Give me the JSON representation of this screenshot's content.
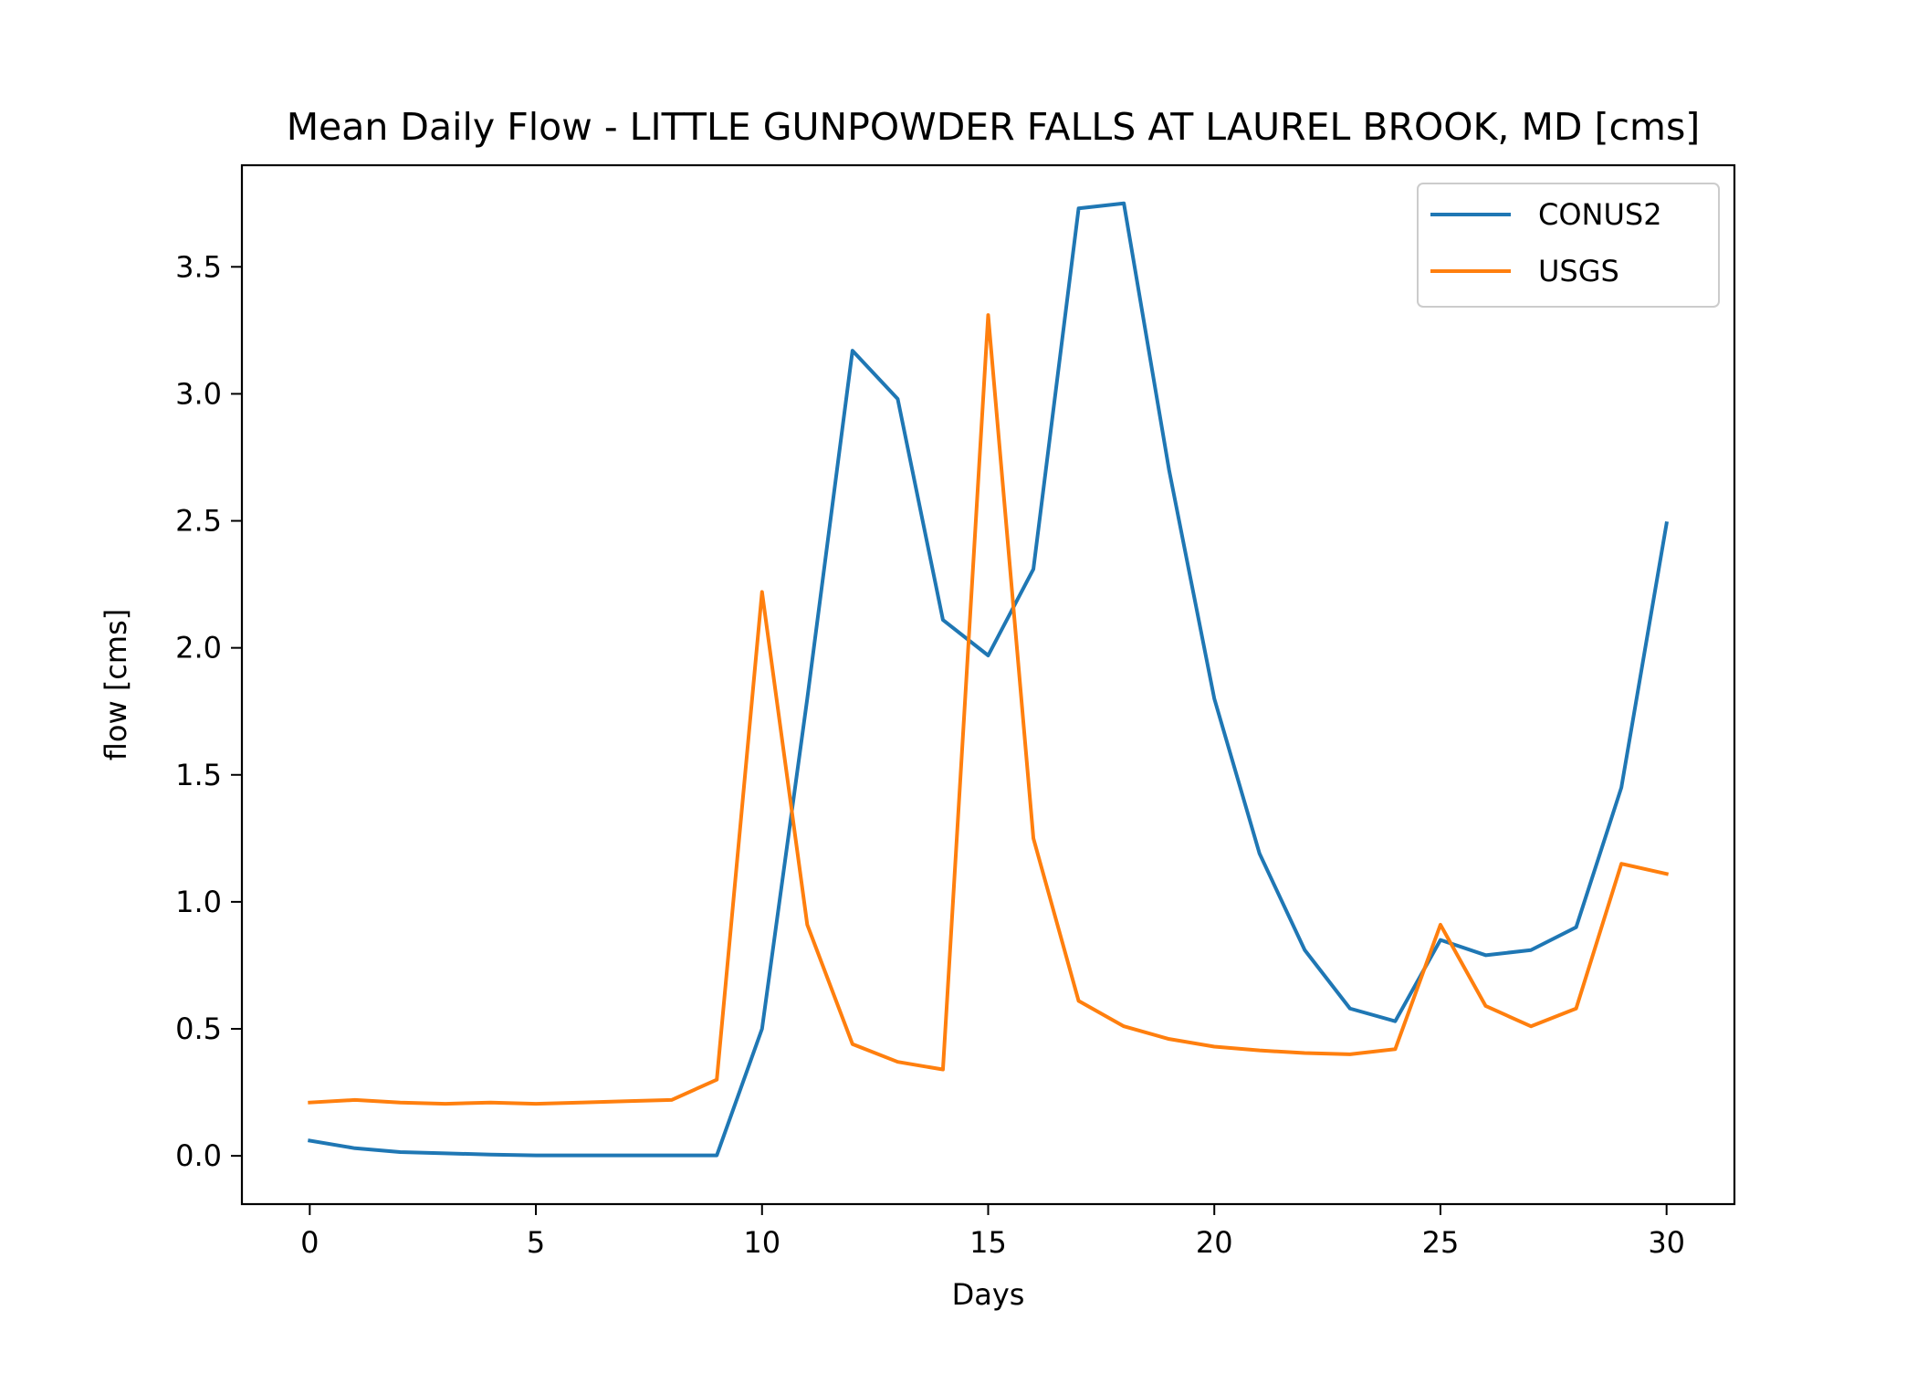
{
  "chart_data": {
    "type": "line",
    "title": "Mean Daily Flow - LITTLE GUNPOWDER FALLS AT LAUREL BROOK, MD [cms]",
    "xlabel": "Days",
    "ylabel": "flow [cms]",
    "xlim": [
      -1.5,
      31.5
    ],
    "ylim": [
      -0.19,
      3.9
    ],
    "xticks": [
      0,
      5,
      10,
      15,
      20,
      25,
      30
    ],
    "xtick_labels": [
      "0",
      "5",
      "10",
      "15",
      "20",
      "25",
      "30"
    ],
    "yticks": [
      0.0,
      0.5,
      1.0,
      1.5,
      2.0,
      2.5,
      3.0,
      3.5
    ],
    "ytick_labels": [
      "0.0",
      "0.5",
      "1.0",
      "1.5",
      "2.0",
      "2.5",
      "3.0",
      "3.5"
    ],
    "grid": false,
    "legend_position": "top-right",
    "x": [
      0,
      1,
      2,
      3,
      4,
      5,
      6,
      7,
      8,
      9,
      10,
      11,
      12,
      13,
      14,
      15,
      16,
      17,
      18,
      19,
      20,
      21,
      22,
      23,
      24,
      25,
      26,
      27,
      28,
      29,
      30
    ],
    "series": [
      {
        "name": "CONUS2",
        "color": "#1f77b4",
        "values": [
          0.06,
          0.03,
          0.015,
          0.01,
          0.005,
          0.002,
          0.002,
          0.002,
          0.002,
          0.002,
          0.5,
          1.8,
          3.17,
          2.98,
          2.11,
          1.97,
          2.31,
          3.73,
          3.75,
          2.7,
          1.8,
          1.19,
          0.81,
          0.58,
          0.53,
          0.85,
          0.79,
          0.81,
          0.9,
          1.45,
          2.49
        ]
      },
      {
        "name": "USGS",
        "color": "#ff7f0e",
        "values": [
          0.21,
          0.22,
          0.21,
          0.205,
          0.21,
          0.205,
          0.21,
          0.215,
          0.22,
          0.3,
          2.22,
          0.91,
          0.44,
          0.37,
          0.34,
          3.31,
          1.25,
          0.61,
          0.51,
          0.46,
          0.43,
          0.415,
          0.405,
          0.4,
          0.42,
          0.91,
          0.59,
          0.51,
          0.58,
          1.15,
          1.11
        ]
      }
    ]
  }
}
